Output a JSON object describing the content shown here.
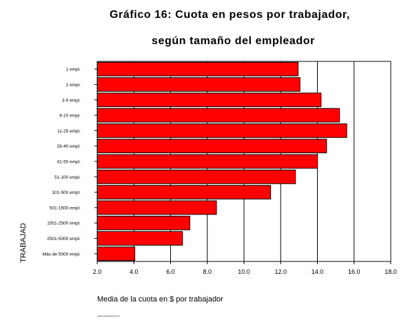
{
  "chart_data": {
    "type": "bar",
    "orientation": "horizontal",
    "title_line1": "Gráfico 16: Cuota en pesos por trabajador,",
    "title_line2": "según tamaño del empleador",
    "xlabel": "Media de la cuota en $ por trabajador",
    "ylabel": "TRABAJAD",
    "xlim": [
      2.0,
      18.0
    ],
    "xticks": [
      "2.0",
      "4.0",
      "6.0",
      "8.0",
      "10.0",
      "12.0",
      "14.0",
      "16.0",
      "18.0"
    ],
    "grid": true,
    "bar_color": "#ff0000",
    "categories": [
      "1 empl.",
      "2 empl.",
      "3-5 empl.",
      "6-10 empl.",
      "11-25 empl.",
      "26-40 empl.",
      "41-50 empl.",
      "51-100 empl.",
      "101-500 empl.",
      "501-1500 empl.",
      "1501-2500 empl.",
      "2501-5000 empl.",
      "Más de 5000 empl."
    ],
    "values": [
      12.95,
      13.05,
      14.2,
      15.2,
      15.6,
      14.5,
      14.0,
      12.8,
      11.45,
      8.5,
      7.05,
      6.65,
      4.05
    ]
  },
  "footnote": "Casos ponderados por F"
}
